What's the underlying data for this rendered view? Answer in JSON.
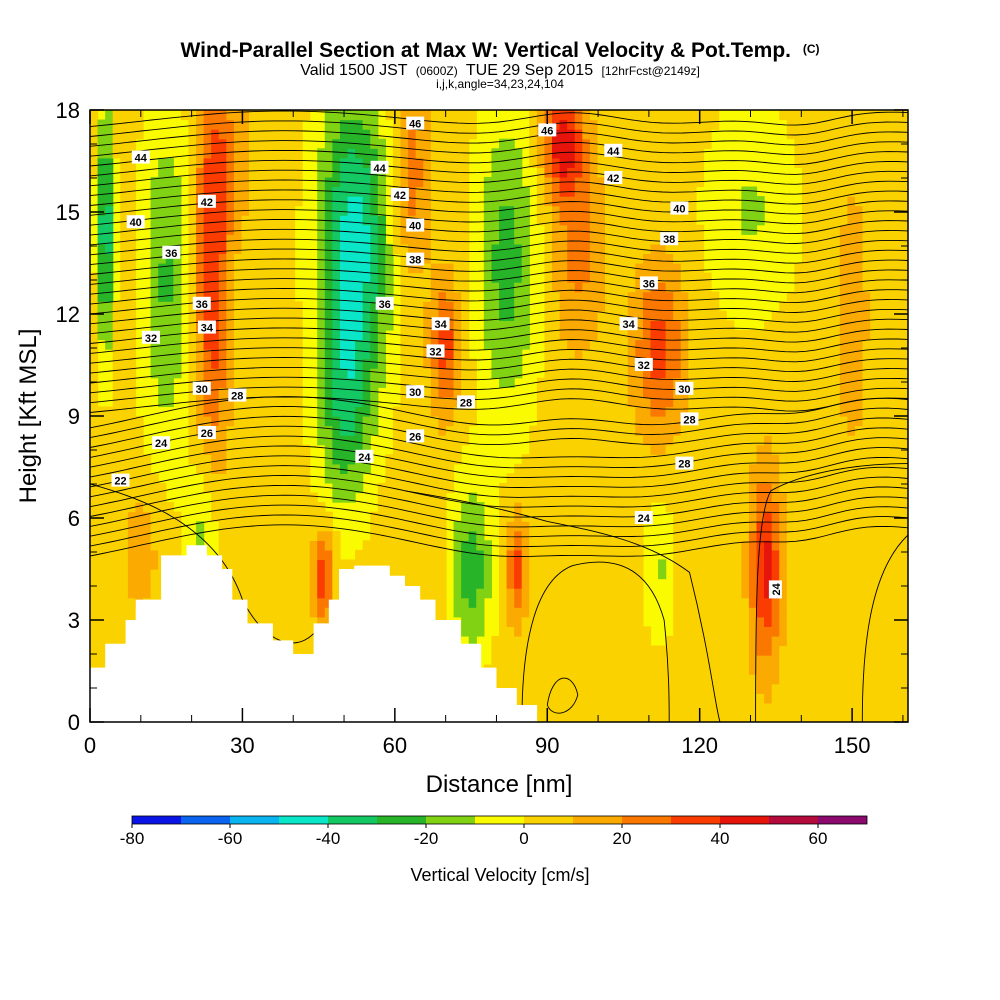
{
  "chart_data": {
    "type": "heatmap",
    "title": "Wind-Parallel Section at Max W: Vertical Velocity & Pot.Temp.",
    "title_unit": "(C)",
    "subtitle_parts": [
      "Valid 1500 JST",
      "(0600Z)",
      "TUE 29 Sep 2015",
      "[12hrFcst@2149z]"
    ],
    "subtitle2": "i,j,k,angle=34,23,24,104",
    "xlabel": "Distance [nm]",
    "ylabel": "Height [Kft MSL]",
    "xlim": [
      0,
      161
    ],
    "ylim": [
      0,
      18
    ],
    "x_ticks": [
      0,
      30,
      60,
      90,
      120,
      150
    ],
    "y_ticks": [
      0,
      3,
      6,
      9,
      12,
      15,
      18
    ],
    "grid": false,
    "colorbar": {
      "label": "Vertical Velocity [cm/s]",
      "levels": [
        -80,
        -70,
        -60,
        -50,
        -40,
        -30,
        -20,
        -10,
        0,
        10,
        20,
        30,
        40,
        50,
        60,
        70
      ],
      "colors": [
        "#0a14e6",
        "#0a64f0",
        "#0ab4f0",
        "#0ae6c8",
        "#14c864",
        "#28b428",
        "#82d214",
        "#fafa00",
        "#fad200",
        "#faaa00",
        "#fa7800",
        "#fa3c00",
        "#e6140a",
        "#b40a3c",
        "#8c0a6e"
      ],
      "tick_labels": [
        -80,
        -60,
        -40,
        -20,
        0,
        20,
        40,
        60
      ]
    },
    "terrain_kft": [
      [
        0,
        1.6
      ],
      [
        3,
        2.3
      ],
      [
        7,
        3.0
      ],
      [
        9,
        3.6
      ],
      [
        14,
        4.9
      ],
      [
        19,
        5.2
      ],
      [
        23,
        4.9
      ],
      [
        26,
        4.5
      ],
      [
        28,
        3.6
      ],
      [
        31,
        2.9
      ],
      [
        36,
        2.4
      ],
      [
        40,
        2.0
      ],
      [
        44,
        2.9
      ],
      [
        47,
        3.6
      ],
      [
        49,
        4.5
      ],
      [
        52,
        4.6
      ],
      [
        55,
        4.6
      ],
      [
        59,
        4.3
      ],
      [
        62,
        4.0
      ],
      [
        65,
        3.6
      ],
      [
        68,
        3.0
      ],
      [
        73,
        2.3
      ],
      [
        77,
        1.6
      ],
      [
        80,
        1.0
      ],
      [
        84,
        0.5
      ],
      [
        88,
        0
      ]
    ],
    "velocity_features": [
      {
        "x": 3,
        "y": 14.5,
        "sx": 1.5,
        "sy": 3.5,
        "w": -45
      },
      {
        "x": 15,
        "y": 13.0,
        "sx": 5,
        "sy": 5,
        "w": -25
      },
      {
        "x": 24,
        "y": 13.0,
        "sx": 3.5,
        "sy": 5,
        "w": 35
      },
      {
        "x": 27,
        "y": 16.5,
        "sx": 5,
        "sy": 2,
        "w": 15
      },
      {
        "x": 46,
        "y": 4.3,
        "sx": 2,
        "sy": 1.3,
        "w": 35
      },
      {
        "x": 52,
        "y": 14.0,
        "sx": 7,
        "sy": 4.5,
        "w": -50
      },
      {
        "x": 50,
        "y": 9.0,
        "sx": 5,
        "sy": 3,
        "w": -25
      },
      {
        "x": 63,
        "y": 16.0,
        "sx": 4,
        "sy": 3,
        "w": 22
      },
      {
        "x": 70,
        "y": 11.0,
        "sx": 3,
        "sy": 2,
        "w": 30
      },
      {
        "x": 75,
        "y": 4.5,
        "sx": 4,
        "sy": 2.5,
        "w": -30
      },
      {
        "x": 82,
        "y": 13.5,
        "sx": 6,
        "sy": 4.5,
        "w": -28
      },
      {
        "x": 84,
        "y": 4.5,
        "sx": 2,
        "sy": 1.6,
        "w": 30
      },
      {
        "x": 93,
        "y": 17.0,
        "sx": 4,
        "sy": 1.5,
        "w": 40
      },
      {
        "x": 96,
        "y": 14.0,
        "sx": 5,
        "sy": 3,
        "w": 20
      },
      {
        "x": 112,
        "y": 11.0,
        "sx": 5,
        "sy": 2.5,
        "w": 30
      },
      {
        "x": 130,
        "y": 15.0,
        "sx": 9,
        "sy": 3,
        "w": -15
      },
      {
        "x": 112,
        "y": 4.5,
        "sx": 3,
        "sy": 2,
        "w": -15
      },
      {
        "x": 133,
        "y": 4.5,
        "sx": 3,
        "sy": 2.8,
        "w": 40
      },
      {
        "x": 150,
        "y": 12.0,
        "sx": 4,
        "sy": 5,
        "w": 10
      },
      {
        "x": 22,
        "y": 5.5,
        "sx": 3,
        "sy": 2,
        "w": -18
      },
      {
        "x": 10,
        "y": 5.0,
        "sx": 4,
        "sy": 2,
        "w": 12
      }
    ],
    "theta_contour_labels": [
      {
        "value": "22",
        "x": 6,
        "y": 7.1
      },
      {
        "value": "24",
        "x": 14,
        "y": 8.2
      },
      {
        "value": "26",
        "x": 23,
        "y": 8.5
      },
      {
        "value": "28",
        "x": 29,
        "y": 9.6
      },
      {
        "value": "30",
        "x": 22,
        "y": 9.8
      },
      {
        "value": "32",
        "x": 12,
        "y": 11.3
      },
      {
        "value": "34",
        "x": 23,
        "y": 11.6
      },
      {
        "value": "36",
        "x": 22,
        "y": 12.3
      },
      {
        "value": "36",
        "x": 16,
        "y": 13.8
      },
      {
        "value": "40",
        "x": 9,
        "y": 14.7
      },
      {
        "value": "42",
        "x": 23,
        "y": 15.3
      },
      {
        "value": "44",
        "x": 10,
        "y": 16.6
      },
      {
        "value": "46",
        "x": 64,
        "y": 17.6
      },
      {
        "value": "44",
        "x": 57,
        "y": 16.3
      },
      {
        "value": "42",
        "x": 61,
        "y": 15.5
      },
      {
        "value": "40",
        "x": 64,
        "y": 14.6
      },
      {
        "value": "38",
        "x": 64,
        "y": 13.6
      },
      {
        "value": "36",
        "x": 58,
        "y": 12.3
      },
      {
        "value": "34",
        "x": 69,
        "y": 11.7
      },
      {
        "value": "32",
        "x": 68,
        "y": 10.9
      },
      {
        "value": "30",
        "x": 64,
        "y": 9.7
      },
      {
        "value": "28",
        "x": 74,
        "y": 9.4
      },
      {
        "value": "26",
        "x": 64,
        "y": 8.4
      },
      {
        "value": "24",
        "x": 54,
        "y": 7.8
      },
      {
        "value": "46",
        "x": 90,
        "y": 17.4
      },
      {
        "value": "44",
        "x": 103,
        "y": 16.8
      },
      {
        "value": "42",
        "x": 103,
        "y": 16.0
      },
      {
        "value": "40",
        "x": 116,
        "y": 15.1
      },
      {
        "value": "38",
        "x": 114,
        "y": 14.2
      },
      {
        "value": "36",
        "x": 110,
        "y": 12.9
      },
      {
        "value": "34",
        "x": 106,
        "y": 11.7
      },
      {
        "value": "32",
        "x": 109,
        "y": 10.5
      },
      {
        "value": "30",
        "x": 117,
        "y": 9.8
      },
      {
        "value": "28",
        "x": 118,
        "y": 8.9
      },
      {
        "value": "28",
        "x": 117,
        "y": 7.6
      },
      {
        "value": "24",
        "x": 109,
        "y": 6.0
      },
      {
        "value": "24",
        "x": 135,
        "y": 3.9
      }
    ]
  }
}
